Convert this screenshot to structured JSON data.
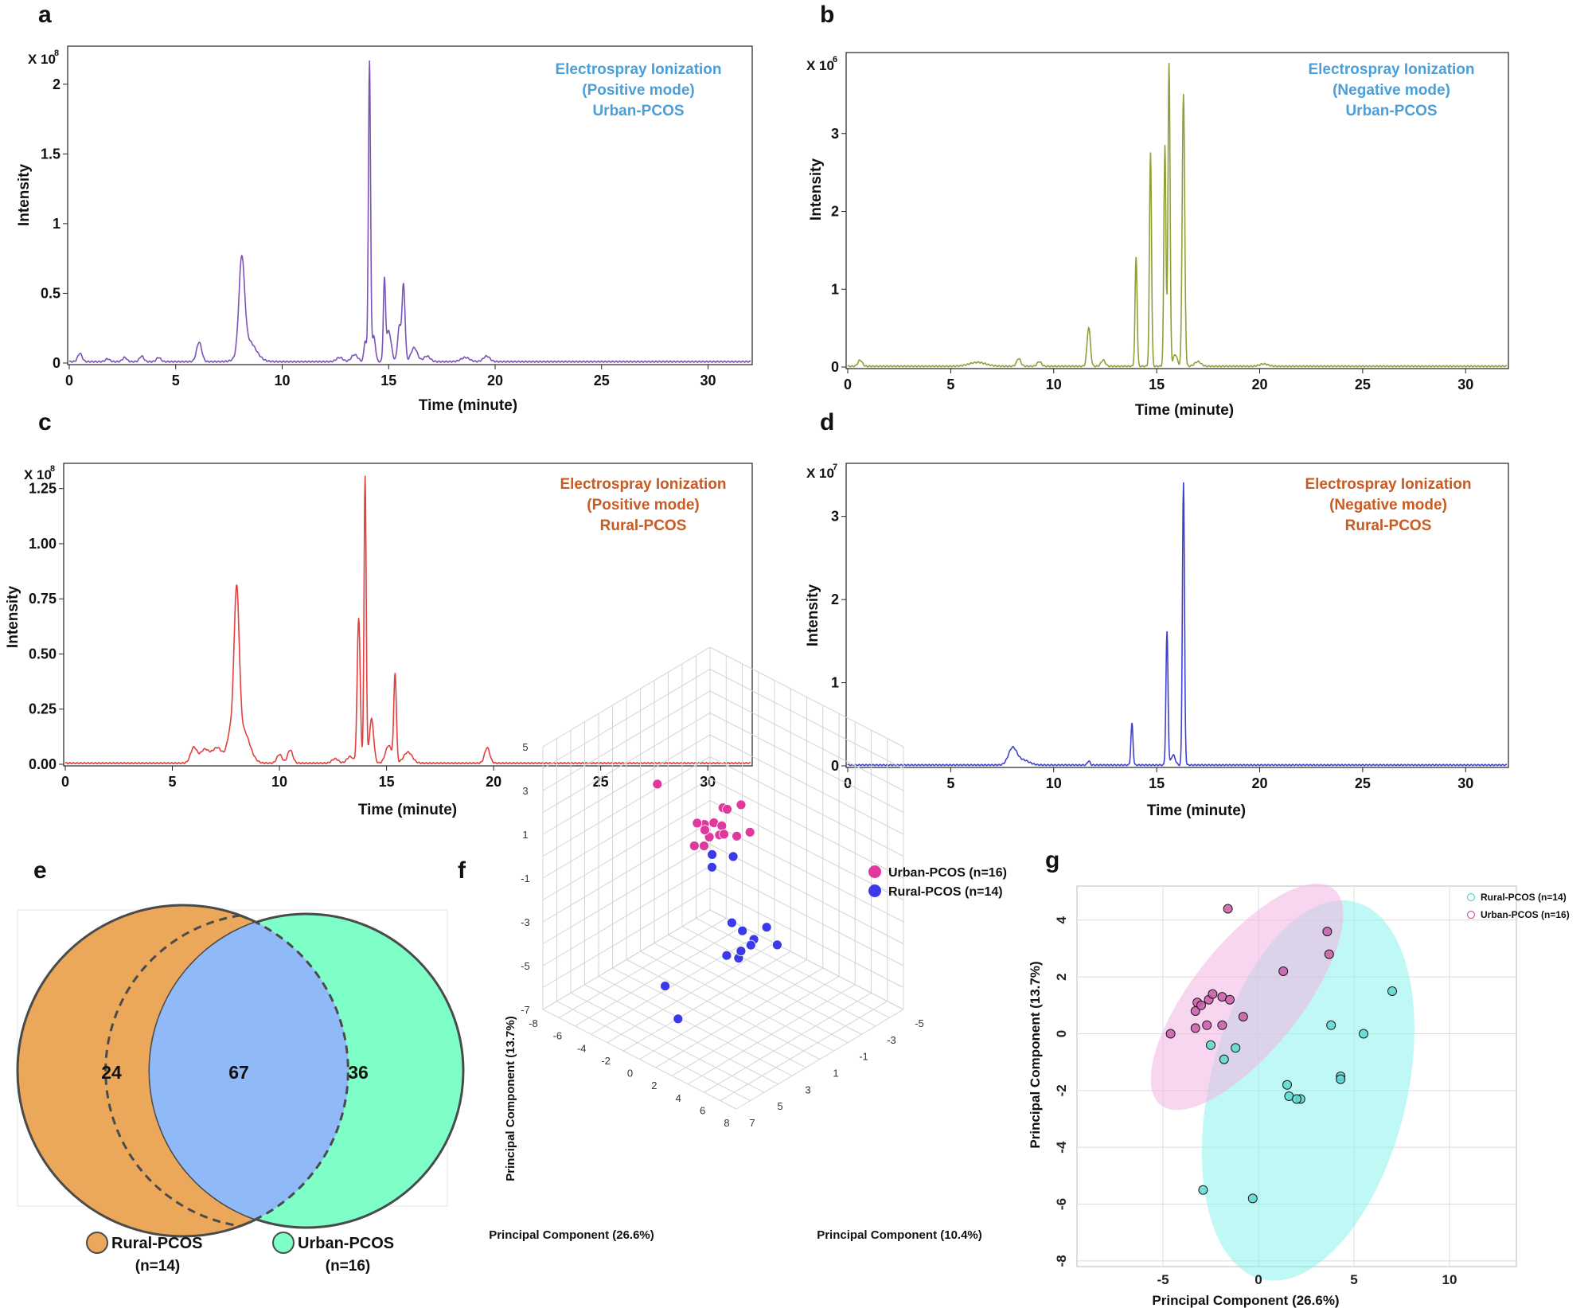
{
  "chart_data": [
    {
      "id": "a",
      "panel_label": "a",
      "type": "line",
      "title": "Electrospray Ionization (Positive mode) Urban-PCOS",
      "title_lines": [
        "Electrospray Ionization",
        "(Positive mode)",
        "Urban-PCOS"
      ],
      "title_color": "#4a9fd8",
      "line_color": "#7b52b8",
      "xlabel": "Time (minute)",
      "ylabel": "Intensity",
      "multiplier": "X 10",
      "exponent": "8",
      "xlim": [
        0,
        32
      ],
      "ylim": [
        0,
        2.25
      ],
      "xticks": [
        0,
        5,
        10,
        15,
        20,
        25,
        30
      ],
      "yticks": [
        0,
        0.5,
        1,
        1.5,
        2
      ],
      "ytick_labels": [
        "0",
        "0.5",
        "1",
        "1.5",
        "2"
      ],
      "baseline": 0.01,
      "peaks": [
        [
          0.5,
          0.06,
          0.1
        ],
        [
          1.8,
          0.02,
          0.1
        ],
        [
          2.6,
          0.03,
          0.1
        ],
        [
          3.4,
          0.04,
          0.1
        ],
        [
          4.2,
          0.03,
          0.1
        ],
        [
          6.1,
          0.14,
          0.12
        ],
        [
          8.1,
          0.66,
          0.13
        ],
        [
          8.4,
          0.15,
          0.35
        ],
        [
          12.7,
          0.03,
          0.15
        ],
        [
          13.4,
          0.05,
          0.15
        ],
        [
          13.9,
          0.15,
          0.06
        ],
        [
          14.1,
          2.15,
          0.05
        ],
        [
          14.3,
          0.18,
          0.08
        ],
        [
          14.8,
          0.55,
          0.05
        ],
        [
          15.0,
          0.22,
          0.12
        ],
        [
          15.5,
          0.25,
          0.08
        ],
        [
          15.7,
          0.55,
          0.07
        ],
        [
          16.2,
          0.1,
          0.15
        ],
        [
          16.8,
          0.04,
          0.15
        ],
        [
          18.6,
          0.03,
          0.2
        ],
        [
          19.6,
          0.04,
          0.15
        ]
      ]
    },
    {
      "id": "b",
      "panel_label": "b",
      "type": "line",
      "title": "Electrospray Ionization (Negative mode) Urban-PCOS",
      "title_lines": [
        "Electrospray Ionization",
        "(Negative mode)",
        "Urban-PCOS"
      ],
      "title_color": "#4a9fd8",
      "line_color": "#8fa03a",
      "xlabel": "Time (minute)",
      "ylabel": "Intensity",
      "multiplier": "X 10",
      "exponent": "6",
      "xlim": [
        0,
        32
      ],
      "ylim": [
        0,
        4.0
      ],
      "xticks": [
        0,
        5,
        10,
        15,
        20,
        25,
        30
      ],
      "yticks": [
        0,
        1,
        2,
        3
      ],
      "ytick_labels": [
        "0",
        "1",
        "2",
        "3"
      ],
      "baseline": 0.01,
      "peaks": [
        [
          0.6,
          0.08,
          0.1
        ],
        [
          6.3,
          0.05,
          0.4
        ],
        [
          8.3,
          0.1,
          0.1
        ],
        [
          9.3,
          0.06,
          0.1
        ],
        [
          11.7,
          0.5,
          0.08
        ],
        [
          12.4,
          0.08,
          0.1
        ],
        [
          14.0,
          1.4,
          0.05
        ],
        [
          14.7,
          2.75,
          0.05
        ],
        [
          15.4,
          2.85,
          0.05
        ],
        [
          15.6,
          3.9,
          0.05
        ],
        [
          15.9,
          0.15,
          0.1
        ],
        [
          16.3,
          3.5,
          0.06
        ],
        [
          17.0,
          0.06,
          0.15
        ],
        [
          20.2,
          0.03,
          0.2
        ]
      ]
    },
    {
      "id": "c",
      "panel_label": "c",
      "type": "line",
      "title": "Electrospray Ionization (Positive mode) Rural-PCOS",
      "title_lines": [
        "Electrospray Ionization",
        "(Positive mode)",
        "Rural-PCOS"
      ],
      "title_color": "#c85a22",
      "line_color": "#e0403e",
      "xlabel": "Time (minute)",
      "ylabel": "Intensity",
      "multiplier": "X 10",
      "exponent": "8",
      "xlim": [
        0,
        32
      ],
      "ylim": [
        0,
        1.35
      ],
      "xticks": [
        0,
        5,
        10,
        15,
        20,
        25,
        30
      ],
      "yticks": [
        0,
        0.25,
        0.5,
        0.75,
        1.0,
        1.25
      ],
      "ytick_labels": [
        "0.00",
        "0.25",
        "0.50",
        "0.75",
        "1.00",
        "1.25"
      ],
      "baseline": 0.005,
      "peaks": [
        [
          6.0,
          0.07,
          0.15
        ],
        [
          6.5,
          0.06,
          0.2
        ],
        [
          7.1,
          0.07,
          0.25
        ],
        [
          7.7,
          0.12,
          0.15
        ],
        [
          8.0,
          0.7,
          0.12
        ],
        [
          8.3,
          0.15,
          0.3
        ],
        [
          10.0,
          0.04,
          0.12
        ],
        [
          10.5,
          0.06,
          0.12
        ],
        [
          12.6,
          0.02,
          0.15
        ],
        [
          13.3,
          0.03,
          0.15
        ],
        [
          13.7,
          0.66,
          0.07
        ],
        [
          14.0,
          1.3,
          0.05
        ],
        [
          14.3,
          0.2,
          0.1
        ],
        [
          15.1,
          0.08,
          0.15
        ],
        [
          15.4,
          0.4,
          0.06
        ],
        [
          16.0,
          0.05,
          0.2
        ],
        [
          19.7,
          0.07,
          0.12
        ]
      ]
    },
    {
      "id": "d",
      "panel_label": "d",
      "type": "line",
      "title": "Electrospray Ionization (Negative mode) Rural-PCOS",
      "title_lines": [
        "Electrospray Ionization",
        "(Negative mode)",
        "Rural-PCOS"
      ],
      "title_color": "#c85a22",
      "line_color": "#4040cf",
      "xlabel": "Time (minute)",
      "ylabel": "Intensity",
      "multiplier": "X 10",
      "exponent": "7",
      "xlim": [
        0,
        32
      ],
      "ylim": [
        0,
        3.6
      ],
      "xticks": [
        0,
        5,
        10,
        15,
        20,
        25,
        30
      ],
      "yticks": [
        0,
        1,
        2,
        3
      ],
      "ytick_labels": [
        "0",
        "1",
        "2",
        "3"
      ],
      "baseline": 0.01,
      "peaks": [
        [
          8.0,
          0.2,
          0.2
        ],
        [
          8.5,
          0.06,
          0.3
        ],
        [
          11.7,
          0.05,
          0.06
        ],
        [
          13.8,
          0.5,
          0.05
        ],
        [
          15.5,
          1.6,
          0.05
        ],
        [
          15.8,
          0.12,
          0.1
        ],
        [
          16.3,
          3.4,
          0.05
        ]
      ]
    },
    {
      "id": "e",
      "panel_label": "e",
      "type": "venn",
      "sets": [
        "Rural-PCOS",
        "Urban-PCOS"
      ],
      "set_sizes_label": [
        "(n=14)",
        "(n=16)"
      ],
      "only_rural": 24,
      "overlap": 67,
      "only_urban": 36,
      "colors": {
        "rural": "#eca85a",
        "urban": "#7fffc8",
        "overlap": "#8fbaf7"
      }
    },
    {
      "id": "f",
      "panel_label": "f",
      "type": "scatter",
      "subtype": "3d-pca",
      "xlabel": "Principal Component (26.6%)",
      "ylabel": "Principal Component (13.7%)",
      "zlabel": "Principal Component (10.4%)",
      "x_ticks": [
        "-8",
        "-6",
        "-4",
        "-2",
        "0",
        "2",
        "4",
        "6",
        "8"
      ],
      "y_ticks": [
        "5",
        "3",
        "1",
        "-1",
        "-3",
        "-5",
        "-7"
      ],
      "z_ticks": [
        "-5",
        "-3",
        "-1",
        "1",
        "3",
        "5",
        "7"
      ],
      "legend": [
        "Urban-PCOS (n=16)",
        "Rural-PCOS (n=14)"
      ],
      "colors": [
        "#e0399e",
        "#3a3ae8"
      ],
      "urban_points": [
        [
          -3.5,
          3.0,
          0
        ],
        [
          1.2,
          1.8,
          -0.5
        ],
        [
          1.8,
          2.4,
          0.5
        ],
        [
          2.2,
          1.5,
          1
        ],
        [
          2.6,
          2.8,
          -1
        ],
        [
          3.0,
          2.5,
          0
        ],
        [
          3.2,
          2.0,
          0.5
        ],
        [
          3.8,
          3.2,
          -0.5
        ],
        [
          4.2,
          2.7,
          0.2
        ],
        [
          4.4,
          3.3,
          -1.2
        ],
        [
          4.8,
          2.6,
          0.8
        ],
        [
          5.2,
          2.2,
          -0.3
        ],
        [
          5.6,
          2.9,
          1.0
        ],
        [
          6.0,
          2.4,
          -0.8
        ],
        [
          3.6,
          1.9,
          1.2
        ],
        [
          2.4,
          2.1,
          0.3
        ]
      ],
      "rural_points": [
        [
          2.8,
          0.8,
          0
        ],
        [
          3.5,
          0.5,
          0.5
        ],
        [
          4.5,
          0.9,
          -0.5
        ],
        [
          6.5,
          -1.5,
          1
        ],
        [
          7.0,
          -2.0,
          0.5
        ],
        [
          7.6,
          -2.5,
          0
        ],
        [
          8.0,
          -2.8,
          1.5
        ],
        [
          8.4,
          -2.3,
          0.8
        ],
        [
          6.2,
          -3.2,
          1.2
        ],
        [
          9.0,
          -2.0,
          2.0
        ],
        [
          10.5,
          -0.8,
          1.0
        ],
        [
          11.0,
          -1.8,
          0.5
        ],
        [
          1.0,
          -5.5,
          2.5
        ],
        [
          3.2,
          -6.5,
          3.0
        ]
      ]
    },
    {
      "id": "g",
      "panel_label": "g",
      "type": "scatter",
      "xlabel": "Principal Component (26.6%)",
      "ylabel": "Principal Component (13.7%)",
      "xlim": [
        -9.5,
        13.5
      ],
      "ylim": [
        -8.2,
        5.2
      ],
      "xticks": [
        -5,
        0,
        5,
        10
      ],
      "xtick_labels": [
        "-5",
        "0",
        "5",
        "10"
      ],
      "yticks": [
        -8,
        -6,
        -4,
        -2,
        0,
        2,
        4
      ],
      "ytick_labels": [
        "-8",
        "-6",
        "-4",
        "-2",
        "0",
        "2",
        "4"
      ],
      "grid": true,
      "legend": [
        "Rural-PCOS  (n=14)",
        "Urban-PCOS  (n=16)"
      ],
      "legend_position": "top-right",
      "colors": {
        "rural": "#5ad8d0",
        "urban": "#c95aa8",
        "rural_fill": "#8cf3ec",
        "urban_fill": "#f2b4e2"
      },
      "rural_points": [
        [
          -2.5,
          -0.4
        ],
        [
          -1.8,
          -0.9
        ],
        [
          -1.2,
          -0.5
        ],
        [
          1.5,
          -1.8
        ],
        [
          1.6,
          -2.2
        ],
        [
          2.2,
          -2.3
        ],
        [
          3.8,
          0.3
        ],
        [
          4.3,
          -1.5
        ],
        [
          4.3,
          -1.6
        ],
        [
          5.5,
          0.0
        ],
        [
          7.0,
          1.5
        ],
        [
          -2.9,
          -5.5
        ],
        [
          -0.3,
          -5.8
        ],
        [
          2.0,
          -2.3
        ]
      ],
      "urban_points": [
        [
          -1.6,
          4.4
        ],
        [
          -4.6,
          0.0
        ],
        [
          -3.3,
          0.8
        ],
        [
          -3.2,
          1.1
        ],
        [
          -3.0,
          1.0
        ],
        [
          -2.6,
          1.2
        ],
        [
          -2.4,
          1.4
        ],
        [
          -2.7,
          0.3
        ],
        [
          -1.9,
          1.3
        ],
        [
          -1.5,
          1.2
        ],
        [
          -1.9,
          0.3
        ],
        [
          -3.3,
          0.2
        ],
        [
          -0.8,
          0.6
        ],
        [
          1.3,
          2.2
        ],
        [
          3.6,
          3.6
        ],
        [
          3.7,
          2.8
        ]
      ],
      "ellipses": {
        "urban": {
          "cx": -0.6,
          "cy": 1.3,
          "rx": 6.0,
          "ry": 2.3,
          "angle_deg": 36
        },
        "rural": {
          "cx": 2.6,
          "cy": -2.0,
          "rx": 7.2,
          "ry": 4.9,
          "angle_deg": 60
        }
      }
    }
  ]
}
